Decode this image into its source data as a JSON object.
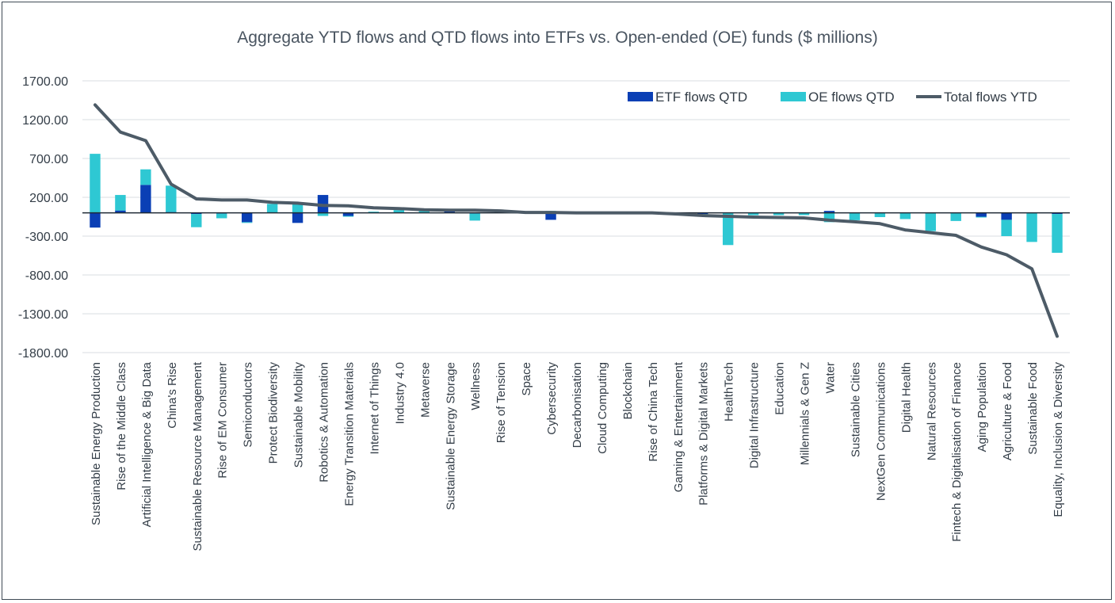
{
  "chart_data": {
    "type": "bar",
    "title": "Aggregate YTD flows and QTD flows into ETFs vs. Open-ended (OE) funds ($ millions)",
    "xlabel": "",
    "ylabel": "",
    "ylim": [
      -1800,
      1700
    ],
    "yticks": [
      "1700.00",
      "1200.00",
      "700.00",
      "200.00",
      "-300.00",
      "-800.00",
      "-1300.00",
      "-1800.00"
    ],
    "ytick_values": [
      1700,
      1200,
      700,
      200,
      -300,
      -800,
      -1300,
      -1800
    ],
    "grid": true,
    "legend_position": "top-right",
    "stacked": true,
    "categories": [
      "Sustainable Energy Production",
      "Rise of the Middle Class",
      "Artificial Intelligence & Big Data",
      "China's Rise",
      "Sustainable Resource Management",
      "Rise of EM Consumer",
      "Semiconductors",
      "Protect Biodiversity",
      "Sustainable Mobility",
      "Robotics & Automation",
      "Energy Transition Materials",
      "Internet of Things",
      "Industry 4.0",
      "Metaverse",
      "Sustainable Energy Storage",
      "Wellness",
      "Rise of Tension",
      "Space",
      "Cybersecurity",
      "Decarbonisation",
      "Cloud Computing",
      "Blockchain",
      "Rise of China Tech",
      "Gaming & Entertainment",
      "Platforms & Digital Markets",
      "HealthTech",
      "Digital Infrastructure",
      "Education",
      "Millennials & Gen Z",
      "Water",
      "Sustainable Cities",
      "NextGen Communications",
      "Digital Health",
      "Natural Resources",
      "Fintech & Digitalisation of Finance",
      "Aging Population",
      "Agriculture & Food",
      "Sustainable Food",
      "Equality, Inclusion & Diversity"
    ],
    "series": [
      {
        "name": "ETF flows QTD",
        "kind": "bar",
        "color": "#0a3fb5",
        "values": [
          -190,
          30,
          360,
          10,
          -15,
          -10,
          -120,
          5,
          -130,
          230,
          -40,
          5,
          5,
          5,
          30,
          -10,
          10,
          5,
          -90,
          -5,
          -5,
          -5,
          -5,
          -5,
          -15,
          -5,
          -5,
          -5,
          -5,
          25,
          -5,
          -5,
          -5,
          -5,
          -5,
          -50,
          -90,
          -5,
          -15
        ]
      },
      {
        "name": "OE flows QTD",
        "kind": "bar",
        "color": "#2ec8d3",
        "values": [
          760,
          200,
          200,
          340,
          -170,
          -60,
          -10,
          110,
          120,
          -40,
          -10,
          10,
          30,
          20,
          5,
          -90,
          10,
          10,
          25,
          -5,
          -5,
          -5,
          -5,
          -15,
          -10,
          -410,
          -25,
          -25,
          -25,
          -120,
          -90,
          -50,
          -75,
          -230,
          -100,
          -10,
          -210,
          -370,
          -500
        ]
      },
      {
        "name": "Total flows YTD",
        "kind": "line",
        "color": "#4d5b67",
        "values": [
          1390,
          1040,
          930,
          370,
          180,
          165,
          165,
          135,
          125,
          95,
          90,
          65,
          55,
          40,
          35,
          35,
          25,
          5,
          5,
          0,
          0,
          0,
          0,
          -15,
          -35,
          -45,
          -55,
          -60,
          -65,
          -95,
          -115,
          -140,
          -220,
          -255,
          -290,
          -440,
          -540,
          -720,
          -1590
        ]
      }
    ]
  }
}
